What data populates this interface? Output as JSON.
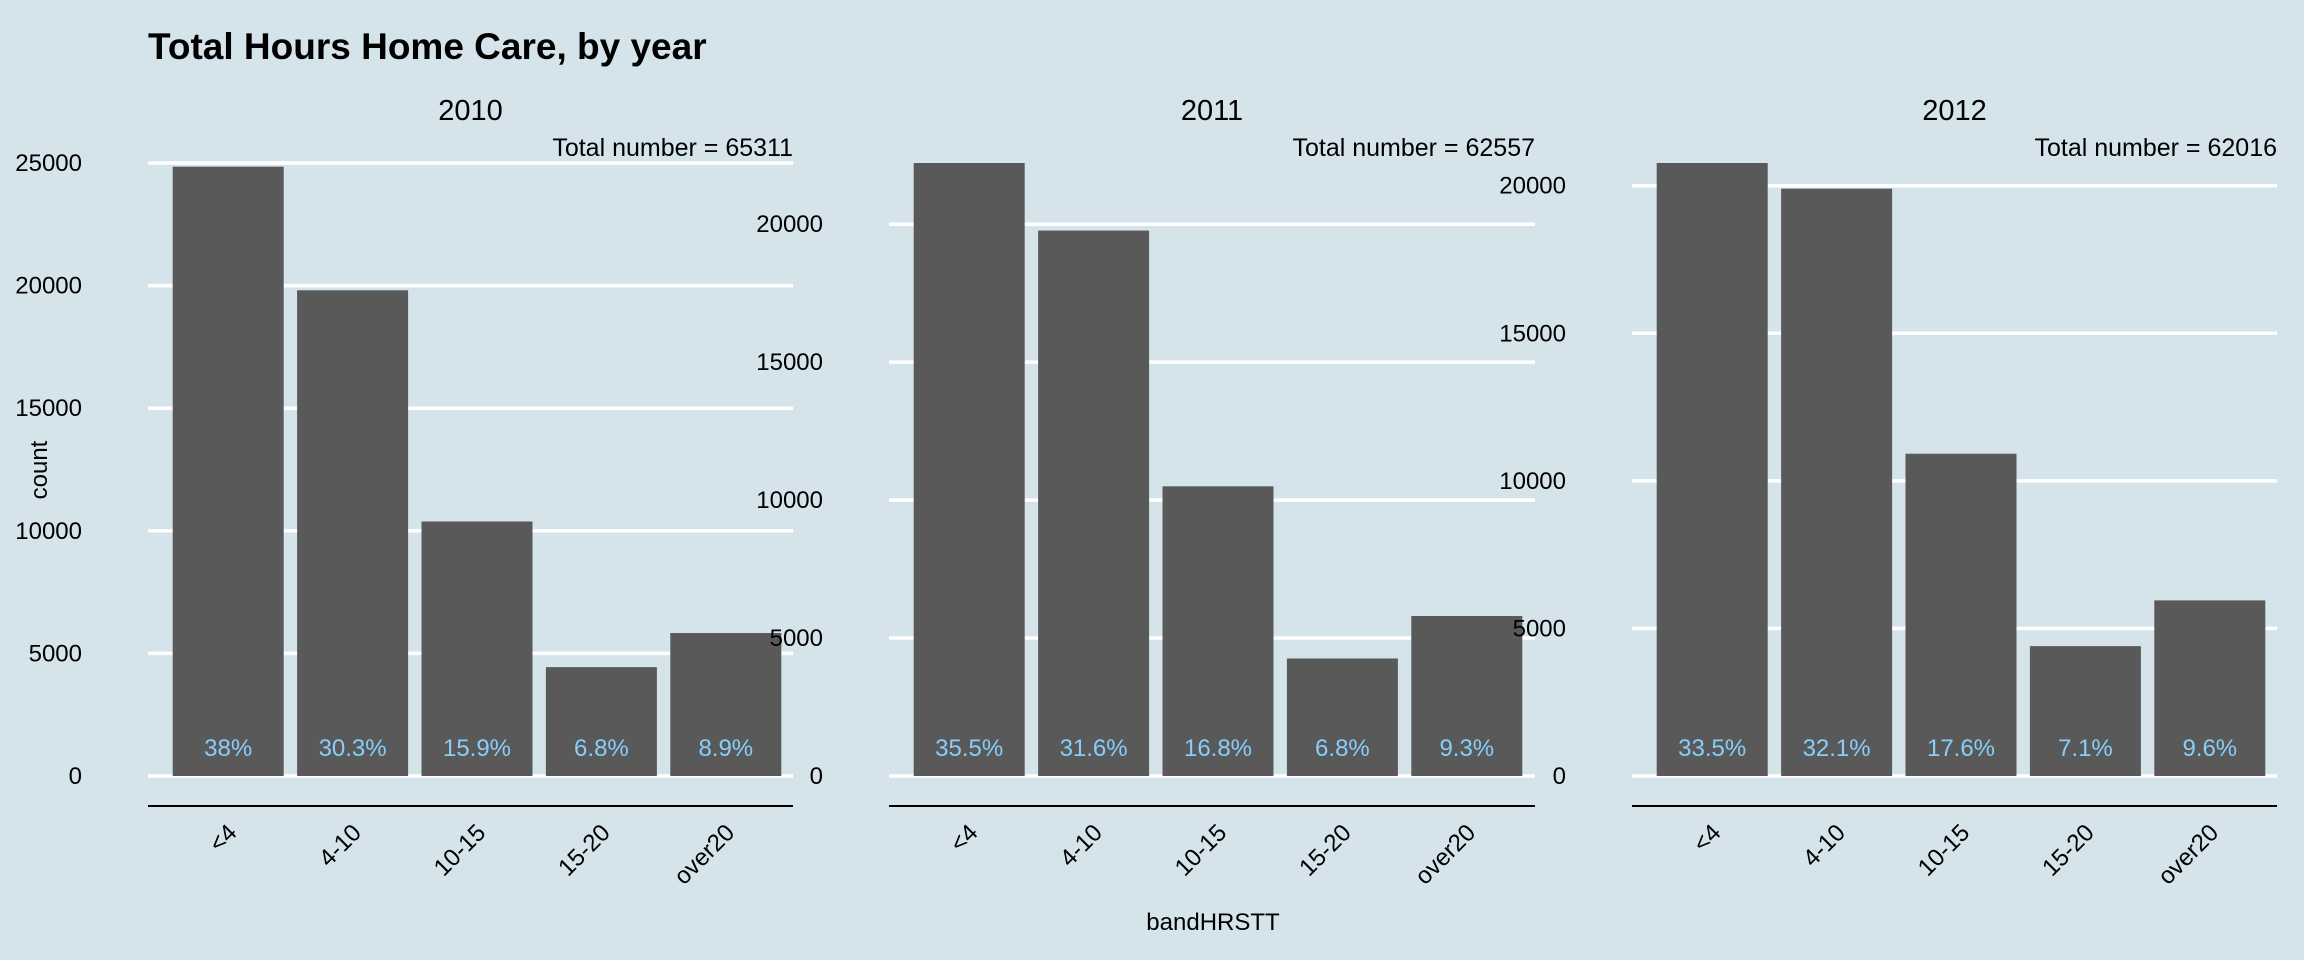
{
  "chart_data": {
    "type": "bar",
    "title": "Total Hours Home Care, by year",
    "xlabel": "bandHRSTT",
    "ylabel": "count",
    "categories": [
      "<4",
      "4-10",
      "10-15",
      "15-20",
      "over20"
    ],
    "bar_color": "#595959",
    "label_color": "#87cefa",
    "background": "#d5e4eb",
    "grid": "horizontal",
    "facets": [
      {
        "name": "2010",
        "annotation": "Total number = 65311",
        "values": [
          24850,
          19810,
          10380,
          4440,
          5830
        ],
        "labels": [
          "38%",
          "30.3%",
          "15.9%",
          "6.8%",
          "8.9%"
        ],
        "ylim": [
          0,
          25000
        ],
        "yticks": [
          0,
          5000,
          10000,
          15000,
          20000,
          25000
        ]
      },
      {
        "name": "2011",
        "annotation": "Total number = 62557",
        "values": [
          22220,
          19770,
          10500,
          4260,
          5800
        ],
        "labels": [
          "35.5%",
          "31.6%",
          "16.8%",
          "6.8%",
          "9.3%"
        ],
        "ylim": [
          0,
          22220
        ],
        "yticks": [
          0,
          5000,
          10000,
          15000,
          20000
        ]
      },
      {
        "name": "2012",
        "annotation": "Total number = 62016",
        "values": [
          20770,
          19900,
          10920,
          4400,
          5950
        ],
        "labels": [
          "33.5%",
          "32.1%",
          "17.6%",
          "7.1%",
          "9.6%"
        ],
        "ylim": [
          0,
          20770
        ],
        "yticks": [
          0,
          5000,
          10000,
          15000,
          20000
        ]
      }
    ]
  }
}
